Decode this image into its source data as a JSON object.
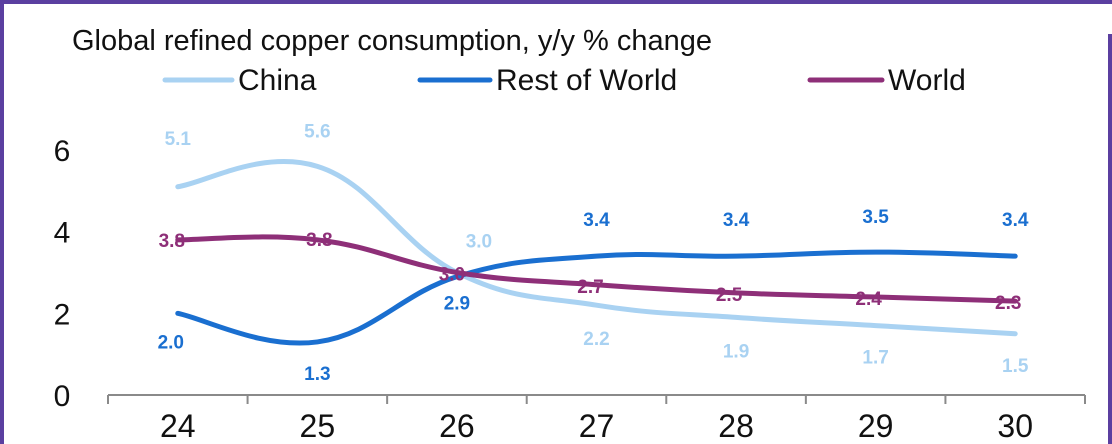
{
  "chart_data": {
    "type": "line",
    "title": "Global refined copper consumption, y/y % change",
    "xlabel": "",
    "ylabel": "",
    "categories": [
      "24",
      "25",
      "26",
      "27",
      "28",
      "29",
      "30"
    ],
    "ylim": [
      0,
      6
    ],
    "yticks": [
      "0",
      "2",
      "4",
      "6"
    ],
    "grid": false,
    "legend_position": "top",
    "series": [
      {
        "name": "China",
        "color": "#a9d2f2",
        "values": [
          5.1,
          5.6,
          3.0,
          2.2,
          1.9,
          1.7,
          1.5
        ],
        "labels": [
          "5.1",
          "5.6",
          "3.0",
          "2.2",
          "1.9",
          "1.7",
          "1.5"
        ]
      },
      {
        "name": "Rest of World",
        "color": "#1a6fd0",
        "values": [
          2.0,
          1.3,
          2.9,
          3.4,
          3.4,
          3.5,
          3.4
        ],
        "labels": [
          "2.0",
          "1.3",
          "2.9",
          "3.4",
          "3.4",
          "3.5",
          "3.4"
        ]
      },
      {
        "name": "World",
        "color": "#8e2f78",
        "values": [
          3.8,
          3.8,
          3.0,
          2.7,
          2.5,
          2.4,
          2.3
        ],
        "labels": [
          "3.8",
          "3.8",
          "3.0",
          "2.7",
          "2.5",
          "2.4",
          "2.3"
        ]
      }
    ]
  }
}
